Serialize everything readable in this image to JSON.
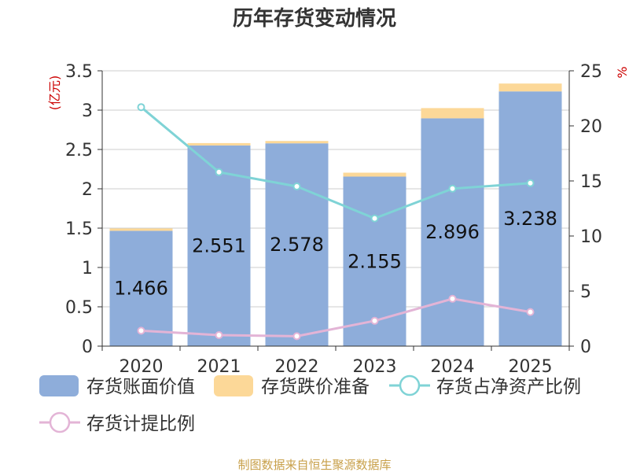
{
  "chart_data": {
    "type": "bar",
    "title": "历年存货变动情况",
    "left_axis_unit": "(亿元)",
    "right_axis_unit": "%",
    "categories": [
      "2020",
      "2021",
      "2022",
      "2023",
      "2024",
      "2025"
    ],
    "left_axis": {
      "min": 0,
      "max": 3.5,
      "ticks": [
        "0",
        "0.5",
        "1",
        "1.5",
        "2",
        "2.5",
        "3",
        "3.5"
      ]
    },
    "right_axis": {
      "min": 0,
      "max": 25,
      "ticks": [
        "0",
        "5",
        "10",
        "15",
        "20",
        "25"
      ]
    },
    "grid": true,
    "legend_position": "bottom",
    "series": [
      {
        "name": "存货账面价值",
        "kind": "bar-stack-base",
        "axis": "left",
        "color": "#8eadda",
        "values": [
          1.466,
          2.551,
          2.578,
          2.155,
          2.896,
          3.238
        ],
        "labels": [
          "1.466",
          "2.551",
          "2.578",
          "2.155",
          "2.896",
          "3.238"
        ]
      },
      {
        "name": "存货跌价准备",
        "kind": "bar-stack-top",
        "axis": "left",
        "color": "#fcd898",
        "values": [
          0.03,
          0.03,
          0.03,
          0.05,
          0.13,
          0.1
        ]
      },
      {
        "name": "存货占净资产比例",
        "kind": "line",
        "axis": "right",
        "color": "#7fd3d6",
        "values": [
          21.7,
          15.8,
          14.5,
          11.6,
          14.3,
          14.8
        ]
      },
      {
        "name": "存货计提比例",
        "kind": "line",
        "axis": "right",
        "color": "#e3b4d6",
        "values": [
          1.4,
          1.0,
          0.9,
          2.3,
          4.3,
          3.1
        ]
      }
    ]
  },
  "source_note": "制图数据来自恒生聚源数据库",
  "colors": {
    "title": "#333333",
    "axis_unit": "#cc0000",
    "source": "#c8a04a",
    "axis": "#333333",
    "grid": "#cccccc"
  }
}
